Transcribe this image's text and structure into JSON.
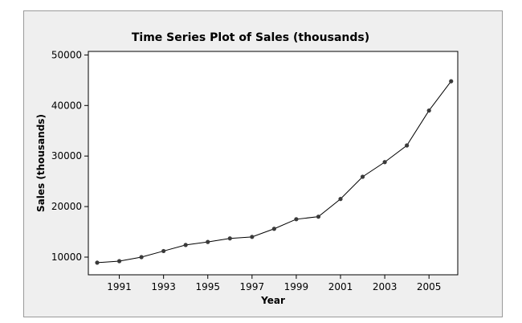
{
  "chart_data": {
    "type": "line",
    "title": "Time Series Plot of Sales (thousands)",
    "xlabel": "Year",
    "ylabel": "Sales (thousands)",
    "x": [
      1990,
      1991,
      1992,
      1993,
      1994,
      1995,
      1996,
      1997,
      1998,
      1999,
      2000,
      2001,
      2002,
      2003,
      2004,
      2005,
      2006
    ],
    "series": [
      {
        "values": [
          8900,
          9200,
          10000,
          11200,
          12400,
          13000,
          13700,
          14000,
          15600,
          17500,
          18000,
          21500,
          25900,
          28800,
          32100,
          39000,
          44800
        ]
      }
    ],
    "xticks": [
      1991,
      1993,
      1995,
      1997,
      1999,
      2001,
      2003,
      2005
    ],
    "yticks": [
      10000,
      20000,
      30000,
      40000,
      50000
    ],
    "xlim": [
      1989.6,
      2006.3
    ],
    "ylim": [
      6500,
      50700
    ],
    "grid": false,
    "line_color": "#000000",
    "marker_color": "#3a3a3a",
    "panel_color": "#efefef",
    "plot_color": "#ffffff"
  }
}
